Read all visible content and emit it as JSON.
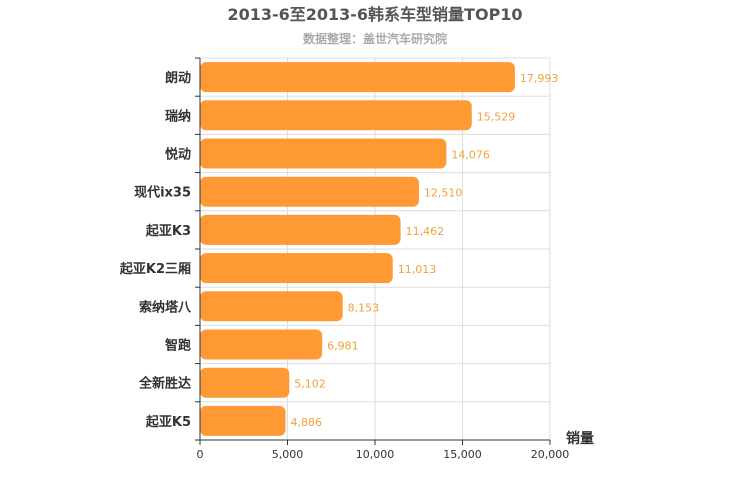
{
  "chart_data": {
    "type": "bar",
    "orientation": "horizontal",
    "title": "2013-6至2013-6韩系车型销量TOP10",
    "subtitle": "数据整理：盖世汽车研究院",
    "xlabel": "销量",
    "ylabel": "",
    "xlim": [
      0,
      20000
    ],
    "xticks": [
      0,
      5000,
      10000,
      15000,
      20000
    ],
    "xtick_labels": [
      "0",
      "5,000",
      "10,000",
      "15,000",
      "20,000"
    ],
    "categories": [
      "朗动",
      "瑞纳",
      "悦动",
      "现代ix35",
      "起亚K3",
      "起亚K2三厢",
      "索纳塔八",
      "智跑",
      "全新胜达",
      "起亚K5"
    ],
    "values": [
      17993,
      15529,
      14076,
      12510,
      11462,
      11013,
      8153,
      6981,
      5102,
      4886
    ],
    "value_labels": [
      "17,993",
      "15,529",
      "14,076",
      "12,510",
      "11,462",
      "11,013",
      "8,153",
      "6,981",
      "5,102",
      "4,886"
    ],
    "bar_color": "#ff9933",
    "label_color": "#f0a23c",
    "grid": true
  }
}
